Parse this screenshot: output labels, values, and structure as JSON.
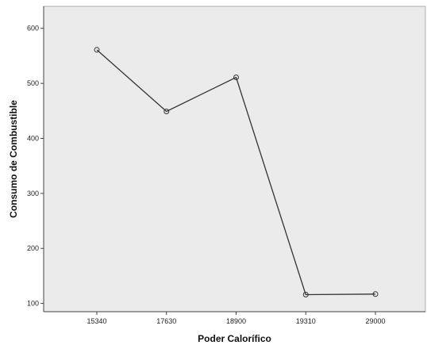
{
  "chart_data": {
    "type": "line",
    "title": "",
    "xlabel": "Poder Calorífico",
    "ylabel": "Consumo de Combustible",
    "categories": [
      "15340",
      "17630",
      "18900",
      "19310",
      "29000"
    ],
    "series": [
      {
        "values": [
          561,
          449,
          511,
          116,
          117
        ]
      }
    ],
    "ylim": [
      85,
      640
    ],
    "yticks": [
      100,
      200,
      300,
      400,
      500,
      600
    ],
    "grid": false,
    "legend": "none",
    "colors": {
      "plot_background": "#ebebeb",
      "line": "#333333",
      "marker_stroke": "#333333",
      "axis": "#444444"
    }
  }
}
